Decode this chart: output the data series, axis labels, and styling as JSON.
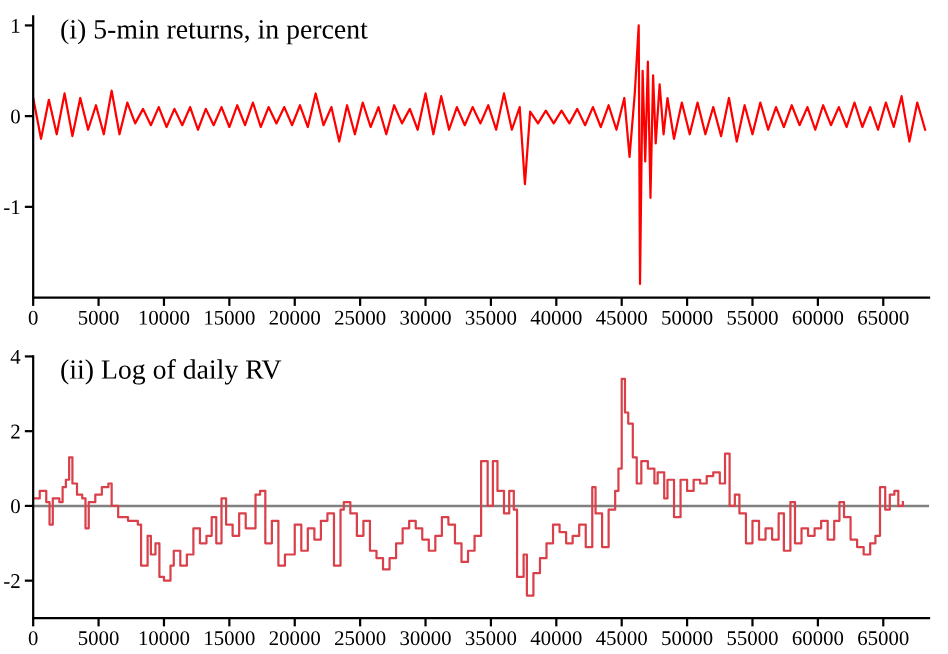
{
  "chart_data": [
    {
      "type": "line",
      "title": "(i) 5-min returns, in percent",
      "xlim": [
        0,
        68500
      ],
      "ylim": [
        -2,
        1.1
      ],
      "xticks": [
        0,
        5000,
        10000,
        15000,
        20000,
        25000,
        30000,
        35000,
        40000,
        45000,
        50000,
        55000,
        60000,
        65000
      ],
      "yticks": [
        -1,
        0,
        1
      ],
      "grid": false,
      "legend": false,
      "series": [
        {
          "color": "#ff0000",
          "x": [
            0,
            600,
            1200,
            1800,
            2400,
            3000,
            3600,
            4200,
            4800,
            5400,
            6000,
            6600,
            7200,
            7800,
            8400,
            9000,
            9600,
            10200,
            10800,
            11400,
            12000,
            12600,
            13200,
            13800,
            14400,
            15000,
            15600,
            16200,
            16800,
            17400,
            18000,
            18600,
            19200,
            19800,
            20400,
            21000,
            21600,
            22200,
            22800,
            23400,
            24000,
            24600,
            25200,
            25800,
            26400,
            27000,
            27600,
            28200,
            28800,
            29400,
            30000,
            30600,
            31200,
            31800,
            32400,
            33000,
            33600,
            34200,
            34800,
            35400,
            36000,
            36600,
            37200,
            37600,
            38000,
            38600,
            39200,
            39800,
            40400,
            41000,
            41600,
            42200,
            42800,
            43400,
            44000,
            44600,
            45200,
            45600,
            46000,
            46300,
            46400,
            46600,
            46800,
            47000,
            47200,
            47400,
            47600,
            47900,
            48200,
            48500,
            49000,
            49600,
            50200,
            50800,
            51400,
            52000,
            52600,
            53200,
            53800,
            54400,
            55000,
            55600,
            56200,
            56800,
            57400,
            58000,
            58600,
            59200,
            59800,
            60400,
            61000,
            61600,
            62200,
            62800,
            63400,
            64000,
            64600,
            65200,
            65800,
            66400,
            67000,
            67600,
            68200
          ],
          "values": [
            0.2,
            -0.25,
            0.18,
            -0.2,
            0.25,
            -0.22,
            0.2,
            -0.15,
            0.12,
            -0.2,
            0.28,
            -0.2,
            0.15,
            -0.08,
            0.08,
            -0.1,
            0.1,
            -0.12,
            0.08,
            -0.1,
            0.1,
            -0.15,
            0.08,
            -0.1,
            0.1,
            -0.12,
            0.12,
            -0.1,
            0.15,
            -0.12,
            0.1,
            -0.08,
            0.1,
            -0.1,
            0.12,
            -0.12,
            0.25,
            -0.1,
            0.1,
            -0.28,
            0.12,
            -0.2,
            0.15,
            -0.12,
            0.1,
            -0.2,
            0.12,
            -0.08,
            0.08,
            -0.15,
            0.25,
            -0.2,
            0.22,
            -0.15,
            0.1,
            -0.1,
            0.1,
            -0.08,
            0.12,
            -0.15,
            0.25,
            -0.15,
            0.1,
            -0.75,
            0.05,
            -0.08,
            0.06,
            -0.08,
            0.06,
            -0.08,
            0.08,
            -0.1,
            0.1,
            -0.12,
            0.12,
            -0.15,
            0.2,
            -0.45,
            0.25,
            1.0,
            -1.85,
            0.5,
            -0.5,
            0.6,
            -0.9,
            0.45,
            -0.3,
            0.35,
            -0.2,
            0.2,
            -0.25,
            0.15,
            -0.2,
            0.15,
            -0.2,
            0.1,
            -0.22,
            0.2,
            -0.28,
            0.12,
            -0.2,
            0.15,
            -0.15,
            0.1,
            -0.12,
            0.12,
            -0.1,
            0.1,
            -0.15,
            0.12,
            -0.1,
            0.1,
            -0.12,
            0.15,
            -0.12,
            0.1,
            -0.15,
            0.15,
            -0.12,
            0.22,
            -0.28,
            0.15,
            -0.15
          ]
        }
      ]
    },
    {
      "type": "step",
      "title": "(ii) Log of daily RV",
      "xlim": [
        0,
        68500
      ],
      "ylim": [
        -3,
        4
      ],
      "xticks": [
        0,
        5000,
        10000,
        15000,
        20000,
        25000,
        30000,
        35000,
        40000,
        45000,
        50000,
        55000,
        60000,
        65000
      ],
      "yticks": [
        -2,
        0,
        2,
        4
      ],
      "grid": false,
      "legend": false,
      "ref_lines": [
        {
          "axis": "y",
          "value": 0,
          "color": "#808080"
        }
      ],
      "series": [
        {
          "color": "#d9404a",
          "x": [
            0,
            500,
            1000,
            1250,
            1500,
            2000,
            2250,
            2500,
            2750,
            3000,
            3350,
            3750,
            4000,
            4250,
            4750,
            5250,
            5750,
            6000,
            6500,
            7250,
            8000,
            8250,
            8750,
            9000,
            9350,
            9650,
            10000,
            10500,
            10750,
            11250,
            11750,
            12250,
            12750,
            13250,
            13650,
            14000,
            14400,
            14750,
            15250,
            15750,
            16250,
            16650,
            17000,
            17350,
            17750,
            18250,
            18750,
            19250,
            20000,
            20500,
            21000,
            21500,
            22000,
            22500,
            23000,
            23500,
            23750,
            24250,
            24750,
            25250,
            25750,
            26250,
            26750,
            27250,
            27750,
            28250,
            28750,
            29250,
            29750,
            30250,
            30750,
            31250,
            31750,
            32250,
            32750,
            33250,
            33750,
            34250,
            34750,
            35150,
            35500,
            36000,
            36400,
            36750,
            37000,
            37500,
            37750,
            38250,
            38750,
            39250,
            39750,
            40250,
            40750,
            41250,
            41750,
            42250,
            42750,
            43000,
            43500,
            44000,
            44500,
            44750,
            45000,
            45250,
            45500,
            45850,
            46150,
            46500,
            47000,
            47500,
            47750,
            48250,
            48500,
            49000,
            49500,
            50000,
            50500,
            51000,
            51500,
            52000,
            52500,
            52900,
            53250,
            53650,
            54000,
            54500,
            55000,
            55500,
            56000,
            56500,
            57000,
            57400,
            57900,
            58250,
            58750,
            59250,
            59750,
            60250,
            60750,
            61250,
            61650,
            62000,
            62500,
            63000,
            63500,
            64000,
            64400,
            64750,
            65150,
            65500,
            65850,
            66150,
            66500
          ],
          "values": [
            0.2,
            0.4,
            0.1,
            -0.5,
            0.2,
            0.1,
            0.5,
            0.7,
            1.3,
            0.6,
            0.3,
            0.2,
            -0.6,
            0.1,
            0.3,
            0.5,
            0.6,
            0.0,
            -0.3,
            -0.4,
            -0.5,
            -1.6,
            -0.8,
            -1.3,
            -1.0,
            -1.9,
            -2.0,
            -1.6,
            -1.2,
            -1.6,
            -1.3,
            -0.6,
            -1.0,
            -0.8,
            -0.3,
            -1.0,
            0.2,
            -0.5,
            -0.8,
            -0.2,
            -0.6,
            -0.6,
            0.3,
            0.4,
            -1.0,
            -0.4,
            -1.6,
            -1.3,
            -0.5,
            -1.2,
            -0.6,
            -0.9,
            -0.4,
            -0.2,
            -1.6,
            -0.1,
            0.1,
            -0.2,
            -0.8,
            -0.4,
            -1.2,
            -1.4,
            -1.7,
            -1.4,
            -1.0,
            -0.6,
            -0.4,
            -0.6,
            -0.9,
            -1.2,
            -0.8,
            -0.3,
            -0.5,
            -1.0,
            -1.5,
            -1.2,
            -0.8,
            1.2,
            0.0,
            1.2,
            0.4,
            -0.2,
            0.4,
            -0.1,
            -1.9,
            -1.3,
            -2.4,
            -1.8,
            -1.4,
            -1.0,
            -0.5,
            -0.7,
            -1.0,
            -0.8,
            -0.5,
            -1.1,
            0.5,
            -0.2,
            -1.1,
            -0.1,
            0.4,
            1.0,
            3.4,
            2.5,
            2.2,
            1.3,
            0.6,
            1.2,
            1.0,
            0.6,
            0.9,
            0.2,
            0.7,
            -0.3,
            0.7,
            0.4,
            0.7,
            0.6,
            0.8,
            0.9,
            0.6,
            1.4,
            0.0,
            0.3,
            -0.2,
            -1.0,
            -0.4,
            -0.9,
            -0.6,
            -0.9,
            -0.2,
            -1.2,
            0.1,
            -1.0,
            -0.6,
            -0.8,
            -0.6,
            -0.4,
            -0.9,
            -0.4,
            0.1,
            -0.3,
            -0.9,
            -1.1,
            -1.3,
            -1.0,
            -0.8,
            0.5,
            -0.1,
            0.3,
            0.4,
            0.0,
            0.1
          ]
        }
      ]
    }
  ]
}
